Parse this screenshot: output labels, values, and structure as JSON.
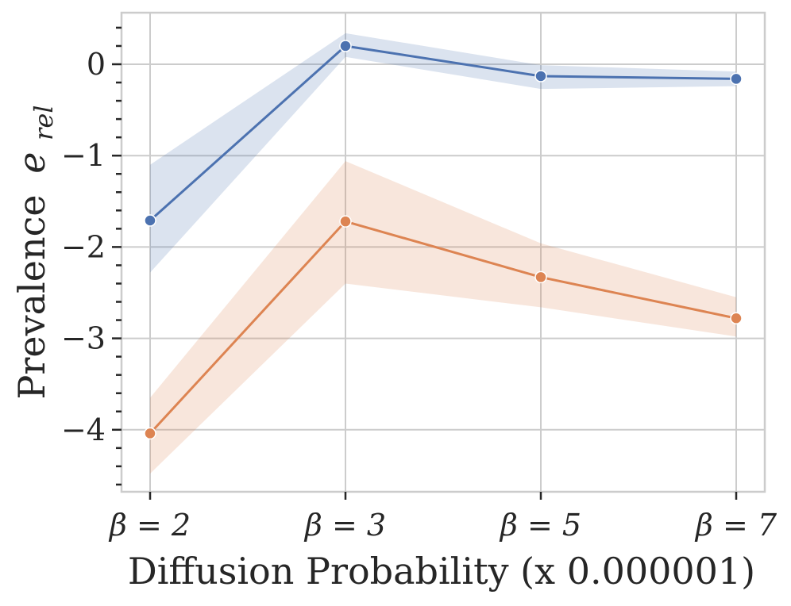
{
  "chart_data": {
    "type": "line",
    "title": "",
    "xlabel": "Diffusion Probability (x 0.000001)",
    "ylabel_text": "Prevalence",
    "ylabel_symbol": "e",
    "ylabel_subscript": "rel",
    "categories": [
      "β = 2",
      "β = 3",
      "β = 5",
      "β = 7"
    ],
    "y_ticks": [
      0,
      -1,
      -2,
      -3,
      -4
    ],
    "y_tick_labels": [
      "0",
      "−1",
      "−2",
      "−3",
      "−4"
    ],
    "ylim": [
      -4.7,
      0.55
    ],
    "grid": true,
    "legend": "none",
    "series": [
      {
        "name": "series 1",
        "color": "#4c72b0",
        "values": [
          -1.71,
          0.2,
          -0.13,
          -0.16
        ],
        "ci_lower": [
          -2.28,
          0.08,
          -0.27,
          -0.24
        ],
        "ci_upper": [
          -1.1,
          0.34,
          -0.01,
          -0.08
        ]
      },
      {
        "name": "series 2",
        "color": "#dd8452",
        "values": [
          -4.04,
          -1.72,
          -2.33,
          -2.78
        ],
        "ci_lower": [
          -4.48,
          -2.4,
          -2.66,
          -2.98
        ],
        "ci_upper": [
          -3.65,
          -1.06,
          -1.96,
          -2.55
        ]
      }
    ]
  }
}
